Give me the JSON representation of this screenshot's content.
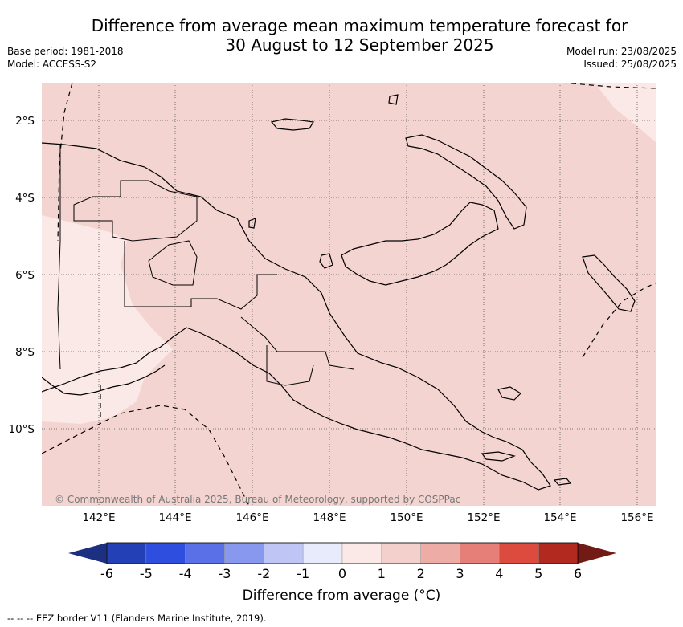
{
  "title": {
    "line1": "Difference from average mean maximum temperature forecast for",
    "line2": "30 August to 12 September 2025"
  },
  "meta_left": {
    "base_period": "Base period: 1981-2018",
    "model": "Model: ACCESS-S2"
  },
  "meta_right": {
    "model_run": "Model run: 23/08/2025",
    "issued": "Issued: 25/08/2025"
  },
  "map": {
    "lat_labels": [
      "2°S",
      "4°S",
      "6°S",
      "8°S",
      "10°S"
    ],
    "lon_labels": [
      "142°E",
      "144°E",
      "146°E",
      "148°E",
      "150°E",
      "152°E",
      "154°E",
      "156°E"
    ],
    "copyright": "© Commonwealth of Australia 2025, Bureau of Meteorology, supported by COSPPac",
    "fill_main": "#f4d4d1",
    "fill_light": "#fbe9e7"
  },
  "colorbar": {
    "ticks": [
      "-6",
      "-5",
      "-4",
      "-3",
      "-2",
      "-1",
      "0",
      "1",
      "2",
      "3",
      "4",
      "5",
      "6"
    ],
    "colors": [
      "#1d2f80",
      "#2440b6",
      "#2e4ee0",
      "#5a70e6",
      "#8898ee",
      "#bfc6f5",
      "#e8ebfb",
      "#fbe9e7",
      "#f4d0cc",
      "#eeaca6",
      "#e57f78",
      "#dc4b3e",
      "#b1291f",
      "#721b16"
    ],
    "label": "Difference from average (°C)"
  },
  "footnote": "-- -- -- EEZ border V11 (Flanders Marine Institute, 2019)."
}
